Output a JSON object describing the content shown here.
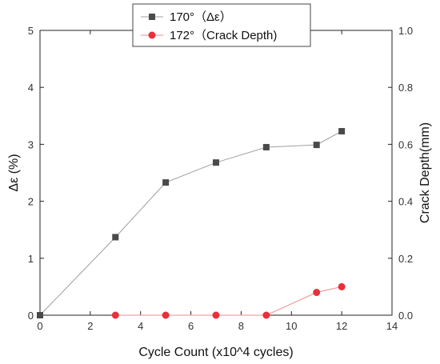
{
  "chart_data": {
    "type": "line",
    "title": "",
    "xlabel": "Cycle Count (x10^4 cycles)",
    "ylabel_left": "Δε (%)",
    "ylabel_right": "Crack Depth(mm)",
    "xlim": [
      0,
      14
    ],
    "ylim_left": [
      0,
      5
    ],
    "ylim_right": [
      0,
      1.0
    ],
    "x_ticks": [
      "0",
      "2",
      "4",
      "6",
      "8",
      "10",
      "12",
      "14"
    ],
    "y_left_ticks": [
      "0",
      "1",
      "2",
      "3",
      "4",
      "5"
    ],
    "y_right_ticks": [
      "0.0",
      "0.2",
      "0.4",
      "0.6",
      "0.8",
      "1.0"
    ],
    "grid": false,
    "legend_position": "top-center",
    "series": [
      {
        "name": "170°（Δε）",
        "axis": "left",
        "marker": "square",
        "color": "#4a4a4a",
        "line_color": "#a0a0a0",
        "x": [
          0,
          3,
          5,
          7,
          9,
          11,
          12
        ],
        "y": [
          0,
          1.37,
          2.33,
          2.68,
          2.95,
          2.99,
          3.23
        ]
      },
      {
        "name": "172°（Crack Depth)",
        "axis": "right",
        "marker": "circle",
        "color": "#e8303a",
        "line_color": "#f08c8c",
        "x": [
          3,
          5,
          7,
          9,
          11,
          12
        ],
        "y": [
          0,
          0,
          0,
          0,
          0.08,
          0.1
        ]
      }
    ]
  }
}
